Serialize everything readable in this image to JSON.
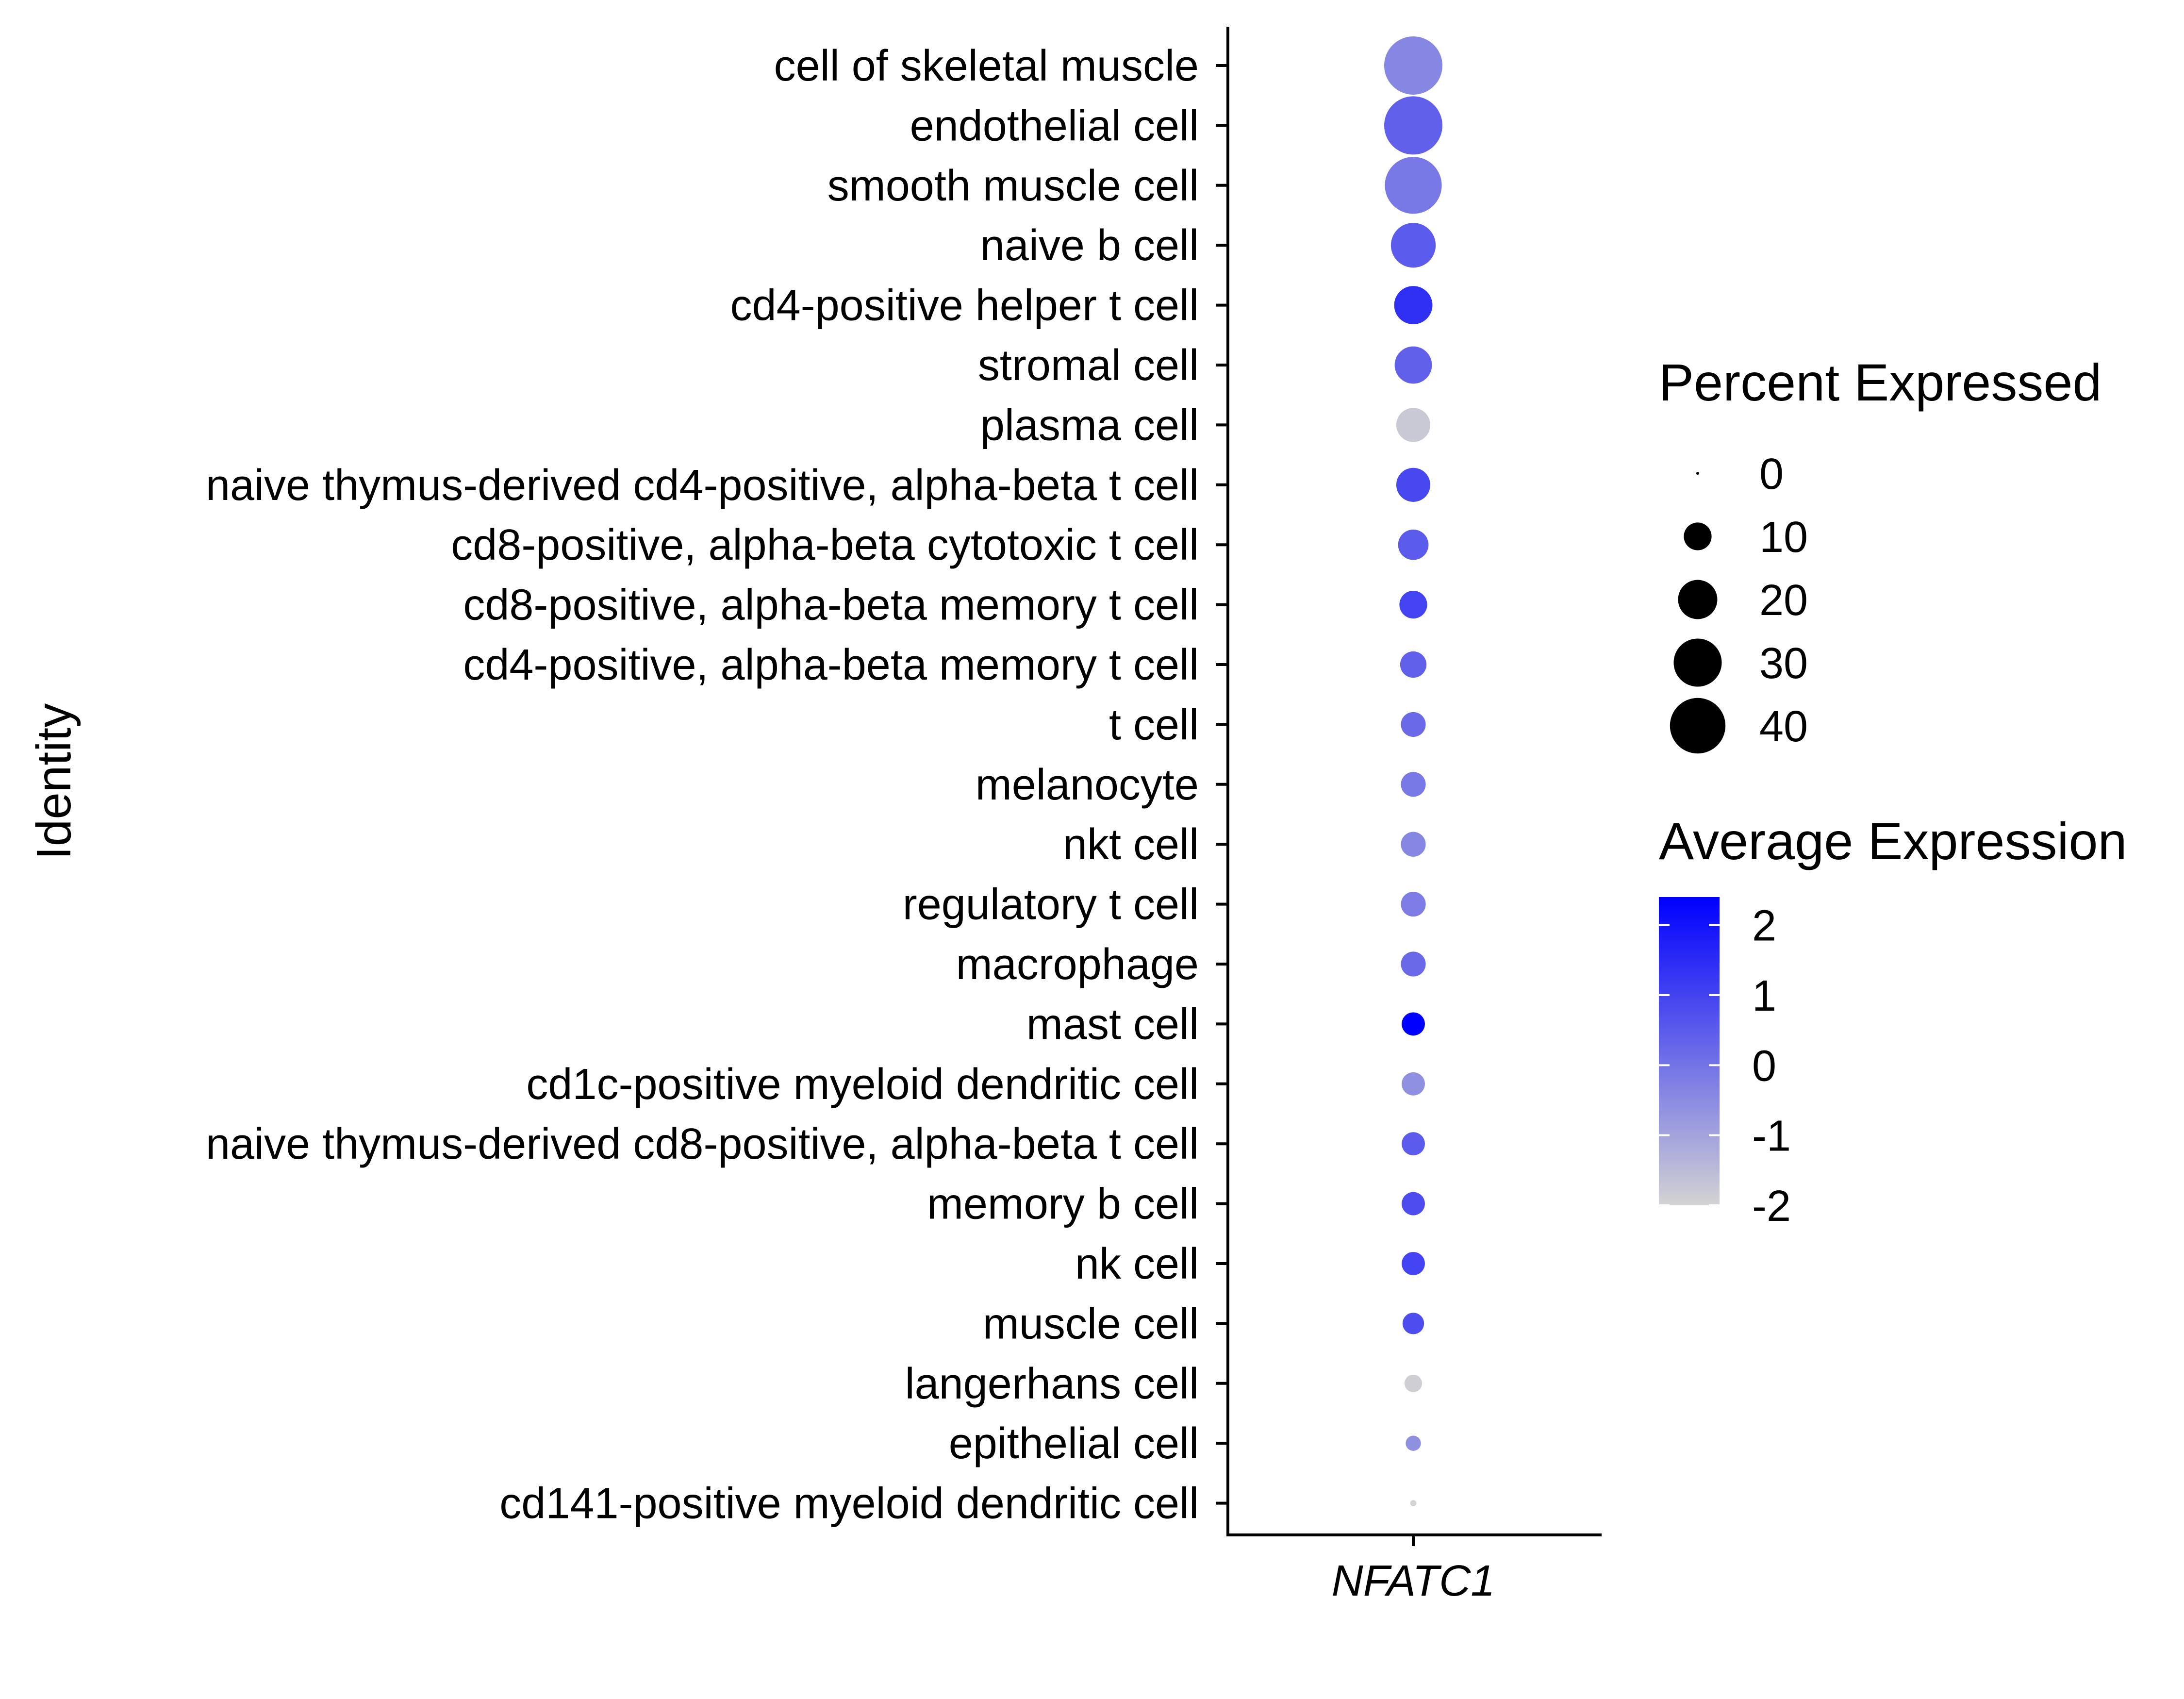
{
  "chart_data": {
    "type": "dotplot",
    "x_categories": [
      "NFATC1"
    ],
    "ylabel": "Identity",
    "categories": [
      "cell of skeletal muscle",
      "endothelial cell",
      "smooth muscle cell",
      "naive b cell",
      "cd4-positive helper t cell",
      "stromal cell",
      "plasma cell",
      "naive thymus-derived cd4-positive, alpha-beta t cell",
      "cd8-positive, alpha-beta cytotoxic t cell",
      "cd8-positive, alpha-beta memory t cell",
      "cd4-positive, alpha-beta memory t cell",
      "t cell",
      "melanocyte",
      "nkt cell",
      "regulatory t cell",
      "macrophage",
      "mast cell",
      "cd1c-positive myeloid dendritic cell",
      "naive thymus-derived cd8-positive, alpha-beta t cell",
      "memory b cell",
      "nk cell",
      "muscle cell",
      "langerhans cell",
      "epithelial cell",
      "cd141-positive myeloid dendritic cell"
    ],
    "series": [
      {
        "gene": "NFATC1",
        "percent_expressed": [
          44,
          44,
          42,
          26,
          19,
          18,
          15,
          15,
          12,
          10,
          9,
          8,
          8,
          8,
          8,
          8,
          7,
          7,
          7,
          7,
          7,
          6,
          4,
          3,
          0.5
        ],
        "average_expression": [
          -0.4,
          0.4,
          -0.1,
          0.5,
          1.4,
          0.4,
          -1.8,
          0.9,
          0.5,
          1.0,
          0.4,
          0.2,
          -0.1,
          -0.4,
          -0.2,
          0.2,
          2.4,
          -0.6,
          0.5,
          0.8,
          1.0,
          0.8,
          -1.9,
          -0.6,
          -2.0
        ]
      }
    ],
    "size_legend": {
      "title": "Percent Expressed",
      "values": [
        0,
        10,
        20,
        30,
        40
      ]
    },
    "color_legend": {
      "title": "Average Expression",
      "ticks": [
        2,
        1,
        0,
        -1,
        -2
      ],
      "range": [
        -2,
        2.4
      ],
      "low_color": "#D3D3D3",
      "high_color": "#0000FF"
    }
  }
}
